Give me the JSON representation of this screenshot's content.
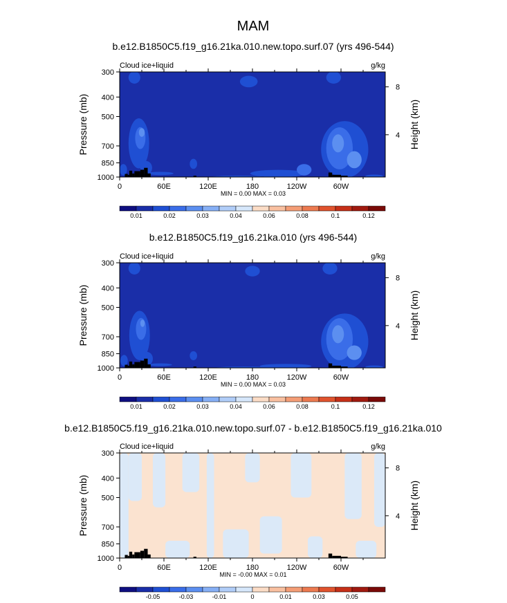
{
  "figure": {
    "title": "MAM"
  },
  "chart_data": [
    {
      "type": "heatmap",
      "title": "b.e12.B1850C5.f19_g16.21ka.010.new.topo.surf.07 (yrs 496-544)",
      "left_label": "Cloud ice+liquid",
      "right_label": "g/kg",
      "ylabel": "Pressure (mb)",
      "ylabel_right": "Height (km)",
      "x_ticks": [
        "0",
        "60E",
        "120E",
        "180",
        "120W",
        "60W"
      ],
      "x_tick_positions_deg": [
        0,
        60,
        120,
        180,
        240,
        300
      ],
      "xlim": [
        0,
        360
      ],
      "y_ticks": [
        300,
        400,
        500,
        700,
        850,
        1000
      ],
      "ylim": [
        1000,
        300
      ],
      "y_scale": "log",
      "height_ticks": [
        {
          "label": "8",
          "p": 356
        },
        {
          "label": "4",
          "p": 616
        }
      ],
      "stats": "MIN =   0.00  MAX =   0.03",
      "colorbar": {
        "colors": [
          "#0f0f80",
          "#1a2ea8",
          "#1f4fd3",
          "#3a6de8",
          "#5c8ff0",
          "#86aff5",
          "#b0cdf8",
          "#d6e7fb",
          "#fbdcc6",
          "#f9c0a0",
          "#f49d76",
          "#ec7a50",
          "#e0532e",
          "#c63018",
          "#a01a10",
          "#7a0a08"
        ],
        "labels": [
          "0.01",
          "0.02",
          "0.03",
          "0.04",
          "0.06",
          "0.08",
          "0.1",
          "0.12"
        ],
        "label_boundaries": [
          1,
          3,
          5,
          7,
          9,
          11,
          13,
          15
        ]
      },
      "background_color": "#1a2ea8",
      "features": [
        {
          "lon": 26,
          "p": 680,
          "rlon": 14,
          "rp": 190,
          "level": 2
        },
        {
          "lon": 28,
          "p": 640,
          "rlon": 7,
          "rp": 80,
          "level": 3
        },
        {
          "lon": 30,
          "p": 600,
          "rlon": 4,
          "rp": 30,
          "level": 4
        },
        {
          "lon": 36,
          "p": 900,
          "rlon": 8,
          "rp": 70,
          "level": 2
        },
        {
          "lon": 5,
          "p": 920,
          "rlon": 5,
          "rp": 60,
          "level": 2
        },
        {
          "lon": 55,
          "p": 960,
          "rlon": 18,
          "rp": 18,
          "level": 2
        },
        {
          "lon": 20,
          "p": 320,
          "rlon": 8,
          "rp": 25,
          "level": 2
        },
        {
          "lon": 100,
          "p": 860,
          "rlon": 5,
          "rp": 50,
          "level": 2
        },
        {
          "lon": 175,
          "p": 335,
          "rlon": 12,
          "rp": 22,
          "level": 2
        },
        {
          "lon": 160,
          "p": 1000,
          "rlon": 35,
          "rp": 22,
          "level": 2
        },
        {
          "lon": 215,
          "p": 960,
          "rlon": 38,
          "rp": 40,
          "level": 2
        },
        {
          "lon": 250,
          "p": 920,
          "rlon": 10,
          "rp": 60,
          "level": 3
        },
        {
          "lon": 290,
          "p": 320,
          "rlon": 10,
          "rp": 25,
          "level": 2
        },
        {
          "lon": 305,
          "p": 730,
          "rlon": 32,
          "rp": 230,
          "level": 2
        },
        {
          "lon": 298,
          "p": 720,
          "rlon": 18,
          "rp": 170,
          "level": 3
        },
        {
          "lon": 296,
          "p": 680,
          "rlon": 8,
          "rp": 70,
          "level": 4
        },
        {
          "lon": 318,
          "p": 820,
          "rlon": 10,
          "rp": 80,
          "level": 4
        },
        {
          "lon": 345,
          "p": 990,
          "rlon": 12,
          "rp": 25,
          "level": 2
        }
      ],
      "terrain": [
        {
          "lon0": 7,
          "lon1": 11,
          "p": 965
        },
        {
          "lon0": 11,
          "lon1": 13,
          "p": 975
        },
        {
          "lon0": 13,
          "lon1": 17,
          "p": 930
        },
        {
          "lon0": 17,
          "lon1": 20,
          "p": 960
        },
        {
          "lon0": 20,
          "lon1": 28,
          "p": 935
        },
        {
          "lon0": 28,
          "lon1": 33,
          "p": 920
        },
        {
          "lon0": 33,
          "lon1": 38,
          "p": 900
        },
        {
          "lon0": 38,
          "lon1": 42,
          "p": 960
        },
        {
          "lon0": 100,
          "lon1": 104,
          "p": 985
        },
        {
          "lon0": 283,
          "lon1": 288,
          "p": 950
        },
        {
          "lon0": 288,
          "lon1": 300,
          "p": 975
        },
        {
          "lon0": 300,
          "lon1": 309,
          "p": 985
        }
      ]
    },
    {
      "type": "heatmap",
      "title": "b.e12.B1850C5.f19_g16.21ka.010 (yrs 496-544)",
      "left_label": "Cloud ice+liquid",
      "right_label": "g/kg",
      "ylabel": "Pressure (mb)",
      "ylabel_right": "Height (km)",
      "x_ticks": [
        "0",
        "60E",
        "120E",
        "180",
        "120W",
        "60W"
      ],
      "x_tick_positions_deg": [
        0,
        60,
        120,
        180,
        240,
        300
      ],
      "xlim": [
        0,
        360
      ],
      "y_ticks": [
        300,
        400,
        500,
        700,
        850,
        1000
      ],
      "ylim": [
        1000,
        300
      ],
      "y_scale": "log",
      "height_ticks": [
        {
          "label": "8",
          "p": 356
        },
        {
          "label": "4",
          "p": 616
        }
      ],
      "stats": "MIN =   0.00  MAX =   0.03",
      "colorbar": {
        "colors": [
          "#0f0f80",
          "#1a2ea8",
          "#1f4fd3",
          "#3a6de8",
          "#5c8ff0",
          "#86aff5",
          "#b0cdf8",
          "#d6e7fb",
          "#fbdcc6",
          "#f9c0a0",
          "#f49d76",
          "#ec7a50",
          "#e0532e",
          "#c63018",
          "#a01a10",
          "#7a0a08"
        ],
        "labels": [
          "0.01",
          "0.02",
          "0.03",
          "0.04",
          "0.06",
          "0.08",
          "0.1",
          "0.12"
        ],
        "label_boundaries": [
          1,
          3,
          5,
          7,
          9,
          11,
          13,
          15
        ]
      },
      "background_color": "#1a2ea8",
      "features": [
        {
          "lon": 27,
          "p": 690,
          "rlon": 14,
          "rp": 190,
          "level": 2
        },
        {
          "lon": 29,
          "p": 640,
          "rlon": 7,
          "rp": 80,
          "level": 3
        },
        {
          "lon": 31,
          "p": 600,
          "rlon": 3,
          "rp": 25,
          "level": 4
        },
        {
          "lon": 37,
          "p": 900,
          "rlon": 8,
          "rp": 70,
          "level": 2
        },
        {
          "lon": 6,
          "p": 920,
          "rlon": 5,
          "rp": 60,
          "level": 2
        },
        {
          "lon": 55,
          "p": 965,
          "rlon": 16,
          "rp": 15,
          "level": 2
        },
        {
          "lon": 20,
          "p": 320,
          "rlon": 8,
          "rp": 25,
          "level": 2
        },
        {
          "lon": 100,
          "p": 870,
          "rlon": 5,
          "rp": 45,
          "level": 2
        },
        {
          "lon": 180,
          "p": 330,
          "rlon": 10,
          "rp": 20,
          "level": 2
        },
        {
          "lon": 170,
          "p": 1000,
          "rlon": 40,
          "rp": 20,
          "level": 2
        },
        {
          "lon": 225,
          "p": 980,
          "rlon": 35,
          "rp": 30,
          "level": 2
        },
        {
          "lon": 285,
          "p": 320,
          "rlon": 10,
          "rp": 25,
          "level": 2
        },
        {
          "lon": 305,
          "p": 740,
          "rlon": 32,
          "rp": 230,
          "level": 2
        },
        {
          "lon": 298,
          "p": 720,
          "rlon": 18,
          "rp": 170,
          "level": 3
        },
        {
          "lon": 296,
          "p": 680,
          "rlon": 8,
          "rp": 70,
          "level": 4
        },
        {
          "lon": 318,
          "p": 840,
          "rlon": 10,
          "rp": 70,
          "level": 4
        },
        {
          "lon": 345,
          "p": 990,
          "rlon": 12,
          "rp": 25,
          "level": 2
        }
      ],
      "terrain": [
        {
          "lon0": 7,
          "lon1": 11,
          "p": 965
        },
        {
          "lon0": 11,
          "lon1": 13,
          "p": 975
        },
        {
          "lon0": 13,
          "lon1": 17,
          "p": 930
        },
        {
          "lon0": 17,
          "lon1": 20,
          "p": 960
        },
        {
          "lon0": 20,
          "lon1": 28,
          "p": 935
        },
        {
          "lon0": 28,
          "lon1": 33,
          "p": 920
        },
        {
          "lon0": 33,
          "lon1": 38,
          "p": 900
        },
        {
          "lon0": 38,
          "lon1": 42,
          "p": 960
        },
        {
          "lon0": 100,
          "lon1": 104,
          "p": 985
        },
        {
          "lon0": 283,
          "lon1": 288,
          "p": 950
        },
        {
          "lon0": 288,
          "lon1": 300,
          "p": 975
        },
        {
          "lon0": 300,
          "lon1": 309,
          "p": 985
        }
      ]
    },
    {
      "type": "heatmap",
      "title": "b.e12.B1850C5.f19_g16.21ka.010.new.topo.surf.07 - b.e12.B1850C5.f19_g16.21ka.010",
      "left_label": "Cloud ice+liquid",
      "right_label": "g/kg",
      "ylabel": "Pressure (mb)",
      "ylabel_right": "Height (km)",
      "x_ticks": [
        "0",
        "60E",
        "120E",
        "180",
        "120W",
        "60W"
      ],
      "x_tick_positions_deg": [
        0,
        60,
        120,
        180,
        240,
        300
      ],
      "xlim": [
        0,
        360
      ],
      "y_ticks": [
        300,
        400,
        500,
        700,
        850,
        1000
      ],
      "ylim": [
        1000,
        300
      ],
      "y_scale": "log",
      "height_ticks": [
        {
          "label": "8",
          "p": 356
        },
        {
          "label": "4",
          "p": 616
        }
      ],
      "stats": "MIN =  -0.00  MAX =   0.01",
      "colorbar": {
        "colors": [
          "#0f0f80",
          "#1a2ea8",
          "#1f4fd3",
          "#3a6de8",
          "#5c8ff0",
          "#86aff5",
          "#b0cdf8",
          "#d6e7fb",
          "#fbdcc6",
          "#f9c0a0",
          "#f49d76",
          "#ec7a50",
          "#e0532e",
          "#c63018",
          "#a01a10",
          "#7a0a08"
        ],
        "labels": [
          "-0.05",
          "-0.03",
          "-0.01",
          "0",
          "0.01",
          "0.03",
          "0.05"
        ],
        "label_boundaries": [
          2,
          4,
          6,
          8,
          10,
          12,
          14
        ]
      },
      "background_color": "#fbe3d0",
      "diff_patches": [
        {
          "lon0": 0,
          "lon1": 12,
          "p0": 300,
          "p1": 1000
        },
        {
          "lon0": 12,
          "lon1": 30,
          "p0": 300,
          "p1": 520
        },
        {
          "lon0": 45,
          "lon1": 62,
          "p0": 300,
          "p1": 560
        },
        {
          "lon0": 62,
          "lon1": 95,
          "p0": 820,
          "p1": 1000
        },
        {
          "lon0": 85,
          "lon1": 108,
          "p0": 300,
          "p1": 470
        },
        {
          "lon0": 118,
          "lon1": 128,
          "p0": 300,
          "p1": 1000
        },
        {
          "lon0": 140,
          "lon1": 175,
          "p0": 720,
          "p1": 1000
        },
        {
          "lon0": 170,
          "lon1": 190,
          "p0": 300,
          "p1": 420
        },
        {
          "lon0": 190,
          "lon1": 220,
          "p0": 620,
          "p1": 950
        },
        {
          "lon0": 232,
          "lon1": 260,
          "p0": 300,
          "p1": 500
        },
        {
          "lon0": 255,
          "lon1": 275,
          "p0": 780,
          "p1": 1000
        },
        {
          "lon0": 305,
          "lon1": 328,
          "p0": 300,
          "p1": 640
        },
        {
          "lon0": 320,
          "lon1": 348,
          "p0": 820,
          "p1": 1000
        },
        {
          "lon0": 345,
          "lon1": 360,
          "p0": 300,
          "p1": 700
        }
      ],
      "diff_patch_color": "#dbe9f8",
      "terrain": [
        {
          "lon0": 7,
          "lon1": 11,
          "p": 965
        },
        {
          "lon0": 11,
          "lon1": 13,
          "p": 975
        },
        {
          "lon0": 13,
          "lon1": 17,
          "p": 930
        },
        {
          "lon0": 17,
          "lon1": 20,
          "p": 960
        },
        {
          "lon0": 20,
          "lon1": 28,
          "p": 935
        },
        {
          "lon0": 28,
          "lon1": 33,
          "p": 920
        },
        {
          "lon0": 33,
          "lon1": 38,
          "p": 900
        },
        {
          "lon0": 38,
          "lon1": 42,
          "p": 960
        },
        {
          "lon0": 100,
          "lon1": 104,
          "p": 985
        },
        {
          "lon0": 283,
          "lon1": 288,
          "p": 950
        },
        {
          "lon0": 288,
          "lon1": 300,
          "p": 975
        },
        {
          "lon0": 300,
          "lon1": 309,
          "p": 985
        }
      ]
    }
  ]
}
